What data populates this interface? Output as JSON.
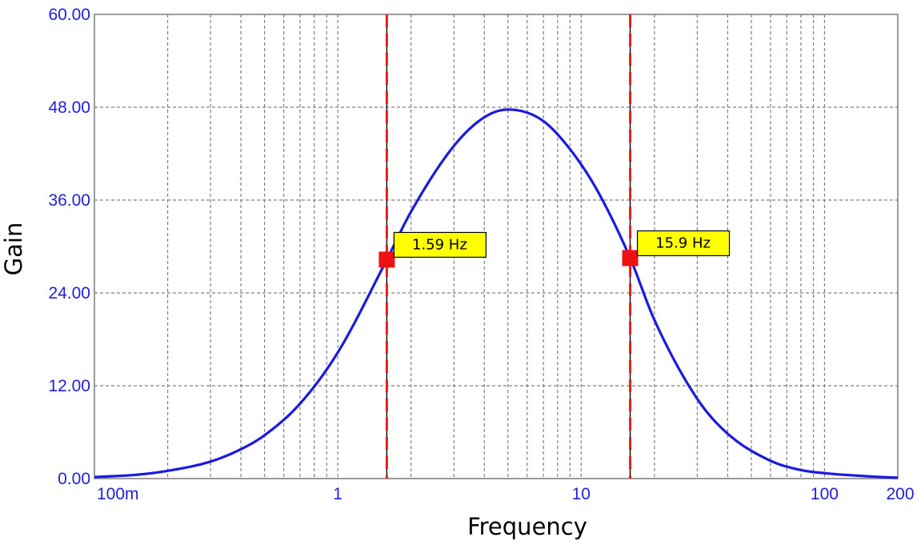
{
  "chart_data": {
    "type": "line",
    "xlabel": "Frequency",
    "ylabel": "Gain",
    "x_scale": "log",
    "xlim": [
      0.1,
      200
    ],
    "ylim": [
      0,
      60
    ],
    "y_ticks": [
      "0.00",
      "12.00",
      "24.00",
      "36.00",
      "48.00",
      "60.00"
    ],
    "y_tick_values": [
      0,
      12,
      24,
      36,
      48,
      60
    ],
    "x_tick_labels": [
      "100m",
      "1",
      "10",
      "100",
      "200"
    ],
    "x_tick_values": [
      0.1,
      1,
      10,
      100,
      200
    ],
    "grid": true,
    "series": [
      {
        "color": "#1a1ae0",
        "x": [
          0.1,
          0.15,
          0.2,
          0.3,
          0.4,
          0.5,
          0.7,
          1,
          1.59,
          2,
          3,
          4,
          5,
          6,
          7,
          8,
          10,
          12,
          15.9,
          20,
          30,
          40,
          60,
          80,
          100,
          150,
          200
        ],
        "y": [
          0.2,
          0.5,
          1.0,
          2.2,
          3.8,
          5.6,
          9.7,
          16.3,
          28.3,
          34.5,
          43.0,
          46.7,
          47.7,
          47.3,
          46.2,
          44.5,
          40.6,
          36.5,
          28.5,
          20.5,
          10.3,
          5.8,
          2.3,
          1.1,
          0.7,
          0.3,
          0.1
        ]
      }
    ],
    "annotations": [
      {
        "x": 1.59,
        "y": 28.3,
        "label": "1.59 Hz"
      },
      {
        "x": 15.9,
        "y": 28.5,
        "label": "15.9 Hz"
      }
    ],
    "colors": {
      "curve": "#1a1ae0",
      "marker_line": "#e61e1e",
      "marker_point": "#ee1111",
      "label_bg": "#ffff00",
      "grid": "#808080",
      "tick_text": "#1e1ee6"
    }
  }
}
